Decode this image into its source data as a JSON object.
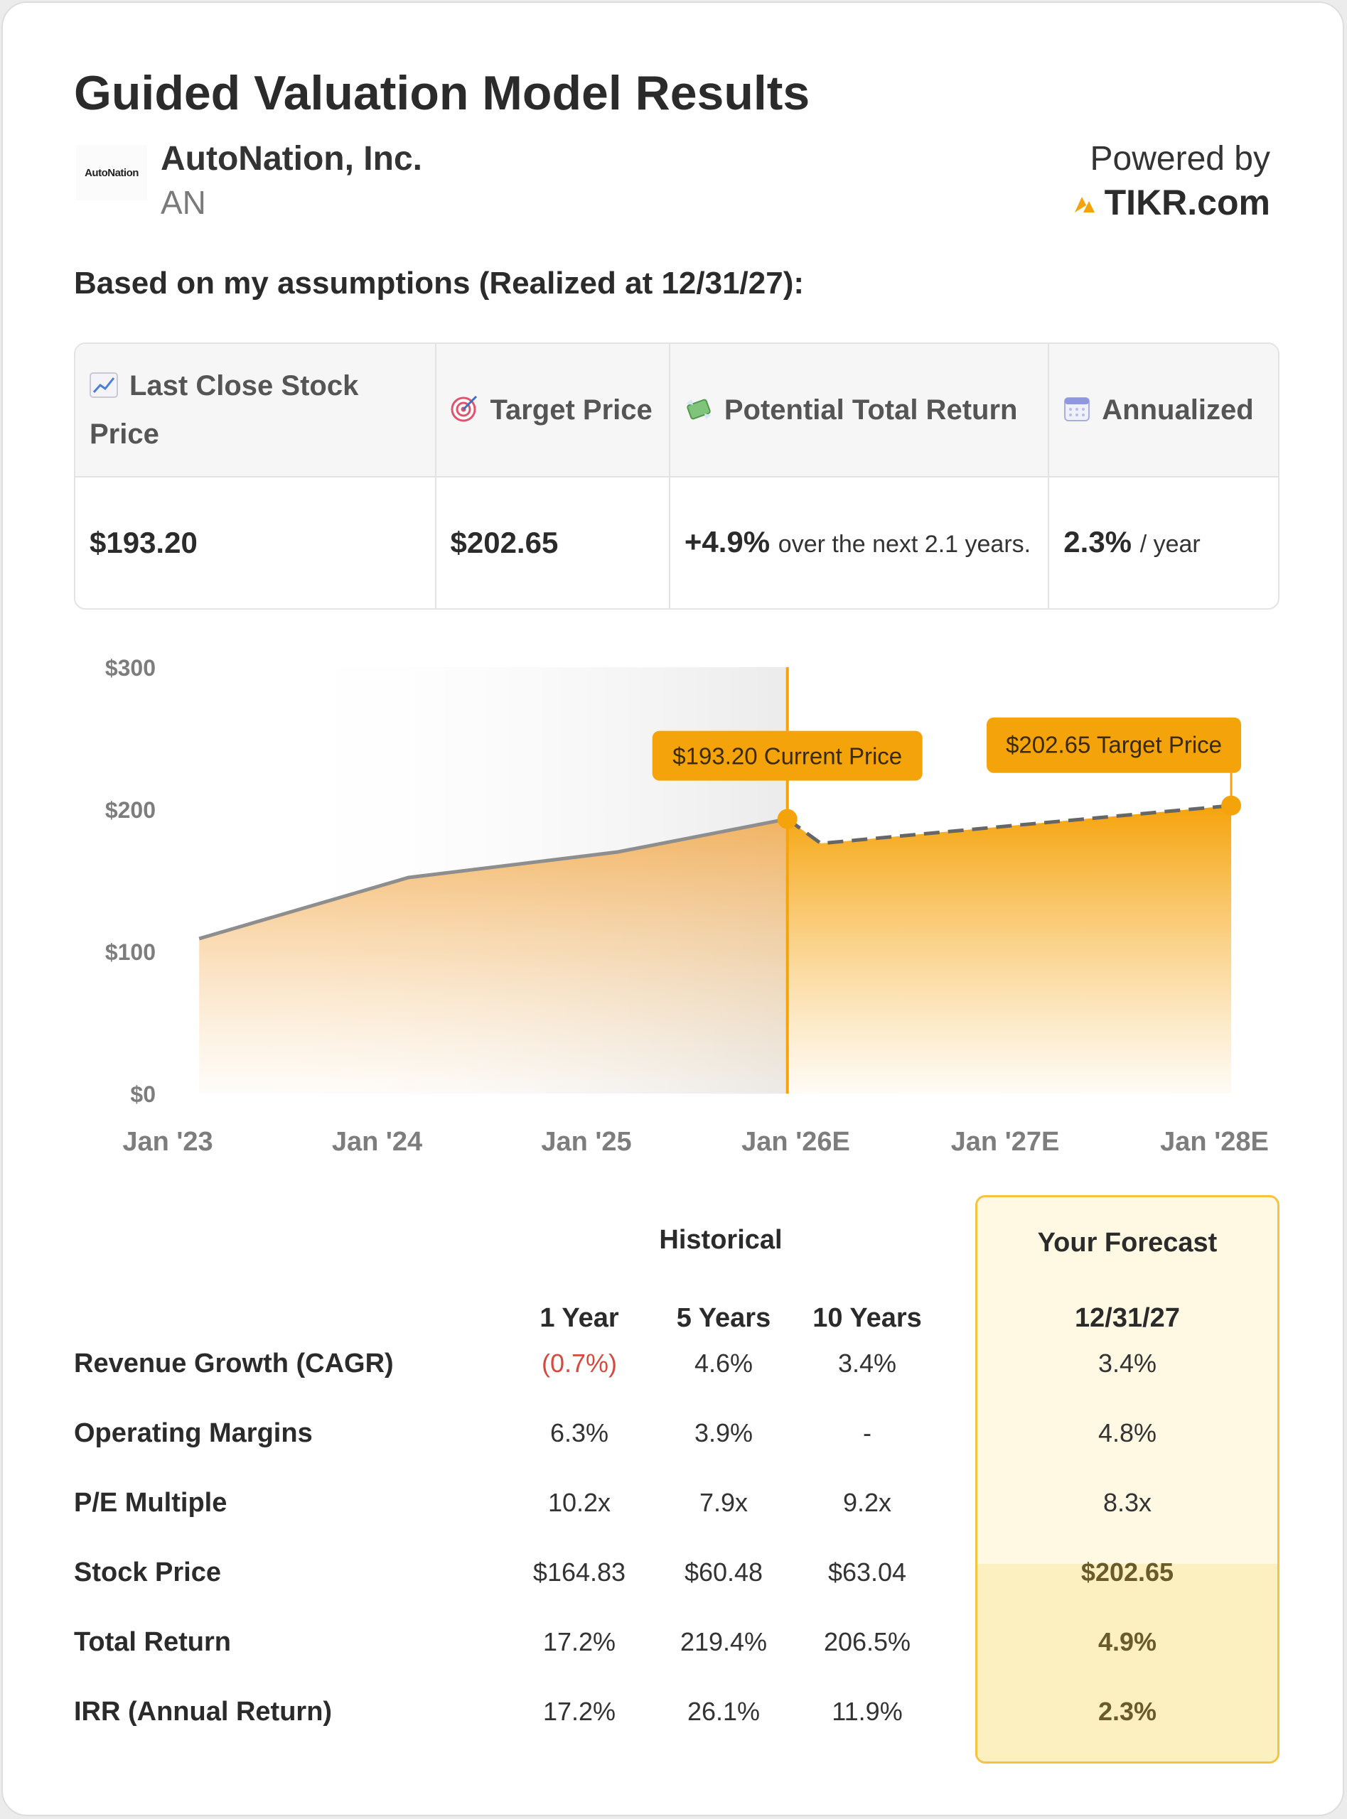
{
  "title": "Guided Valuation Model Results",
  "company": {
    "logo_text": "AutoNation",
    "name": "AutoNation, Inc.",
    "ticker": "AN"
  },
  "powered": {
    "label": "Powered by",
    "brand": "TIKR.com"
  },
  "assumptions_text": "Based on my assumptions (Realized at 12/31/27):",
  "summary": {
    "headers": [
      "Last Close Stock Price",
      "Target Price",
      "Potential Total Return",
      "Annualized"
    ],
    "last_close": "$193.20",
    "target": "$202.65",
    "return_value": "+4.9%",
    "return_text": "over the next 2.1 years.",
    "annualized_value": "2.3%",
    "annualized_text": "/ year"
  },
  "chart_data": {
    "type": "area",
    "x": [
      "Jan '23",
      "Jan '24",
      "Jan '25",
      "Jan '26E",
      "Jan '27E",
      "Jan '28E"
    ],
    "xlabel": "",
    "ylabel": "",
    "y_ticks": [
      "$0",
      "$100",
      "$200",
      "$300"
    ],
    "ylim": [
      0,
      300
    ],
    "series": [
      {
        "points": [
          [
            0.15,
            109
          ],
          [
            1.15,
            152
          ],
          [
            2.15,
            170
          ],
          [
            2.96,
            193.2
          ]
        ]
      },
      {
        "points": [
          [
            2.96,
            193.2
          ],
          [
            3.12,
            176
          ],
          [
            4.07,
            189
          ],
          [
            5.08,
            202.65
          ]
        ]
      }
    ],
    "current_price": {
      "x": 2.96,
      "value": 193.2,
      "label": "$193.20 Current Price"
    },
    "target_price": {
      "x": 5.08,
      "value": 202.65,
      "label": "$202.65 Target Price"
    },
    "grid": false,
    "accent": "#f5a30a"
  },
  "metrics": {
    "group_historical": "Historical",
    "group_forecast": "Your Forecast",
    "columns": [
      "1 Year",
      "5 Years",
      "10 Years",
      "12/31/27"
    ],
    "rows": [
      {
        "label": "Revenue Growth (CAGR)",
        "y1": "(0.7%)",
        "y5": "4.6%",
        "y10": "3.4%",
        "fc": "3.4%"
      },
      {
        "label": "Operating Margins",
        "y1": "6.3%",
        "y5": "3.9%",
        "y10": "-",
        "fc": "4.8%"
      },
      {
        "label": "P/E Multiple",
        "y1": "10.2x",
        "y5": "7.9x",
        "y10": "9.2x",
        "fc": "8.3x"
      },
      {
        "label": "Stock Price",
        "y1": "$164.83",
        "y5": "$60.48",
        "y10": "$63.04",
        "fc": "$202.65"
      },
      {
        "label": "Total Return",
        "y1": "17.2%",
        "y5": "219.4%",
        "y10": "206.5%",
        "fc": "4.9%"
      },
      {
        "label": "IRR (Annual Return)",
        "y1": "17.2%",
        "y5": "26.1%",
        "y10": "11.9%",
        "fc": "2.3%"
      }
    ]
  }
}
